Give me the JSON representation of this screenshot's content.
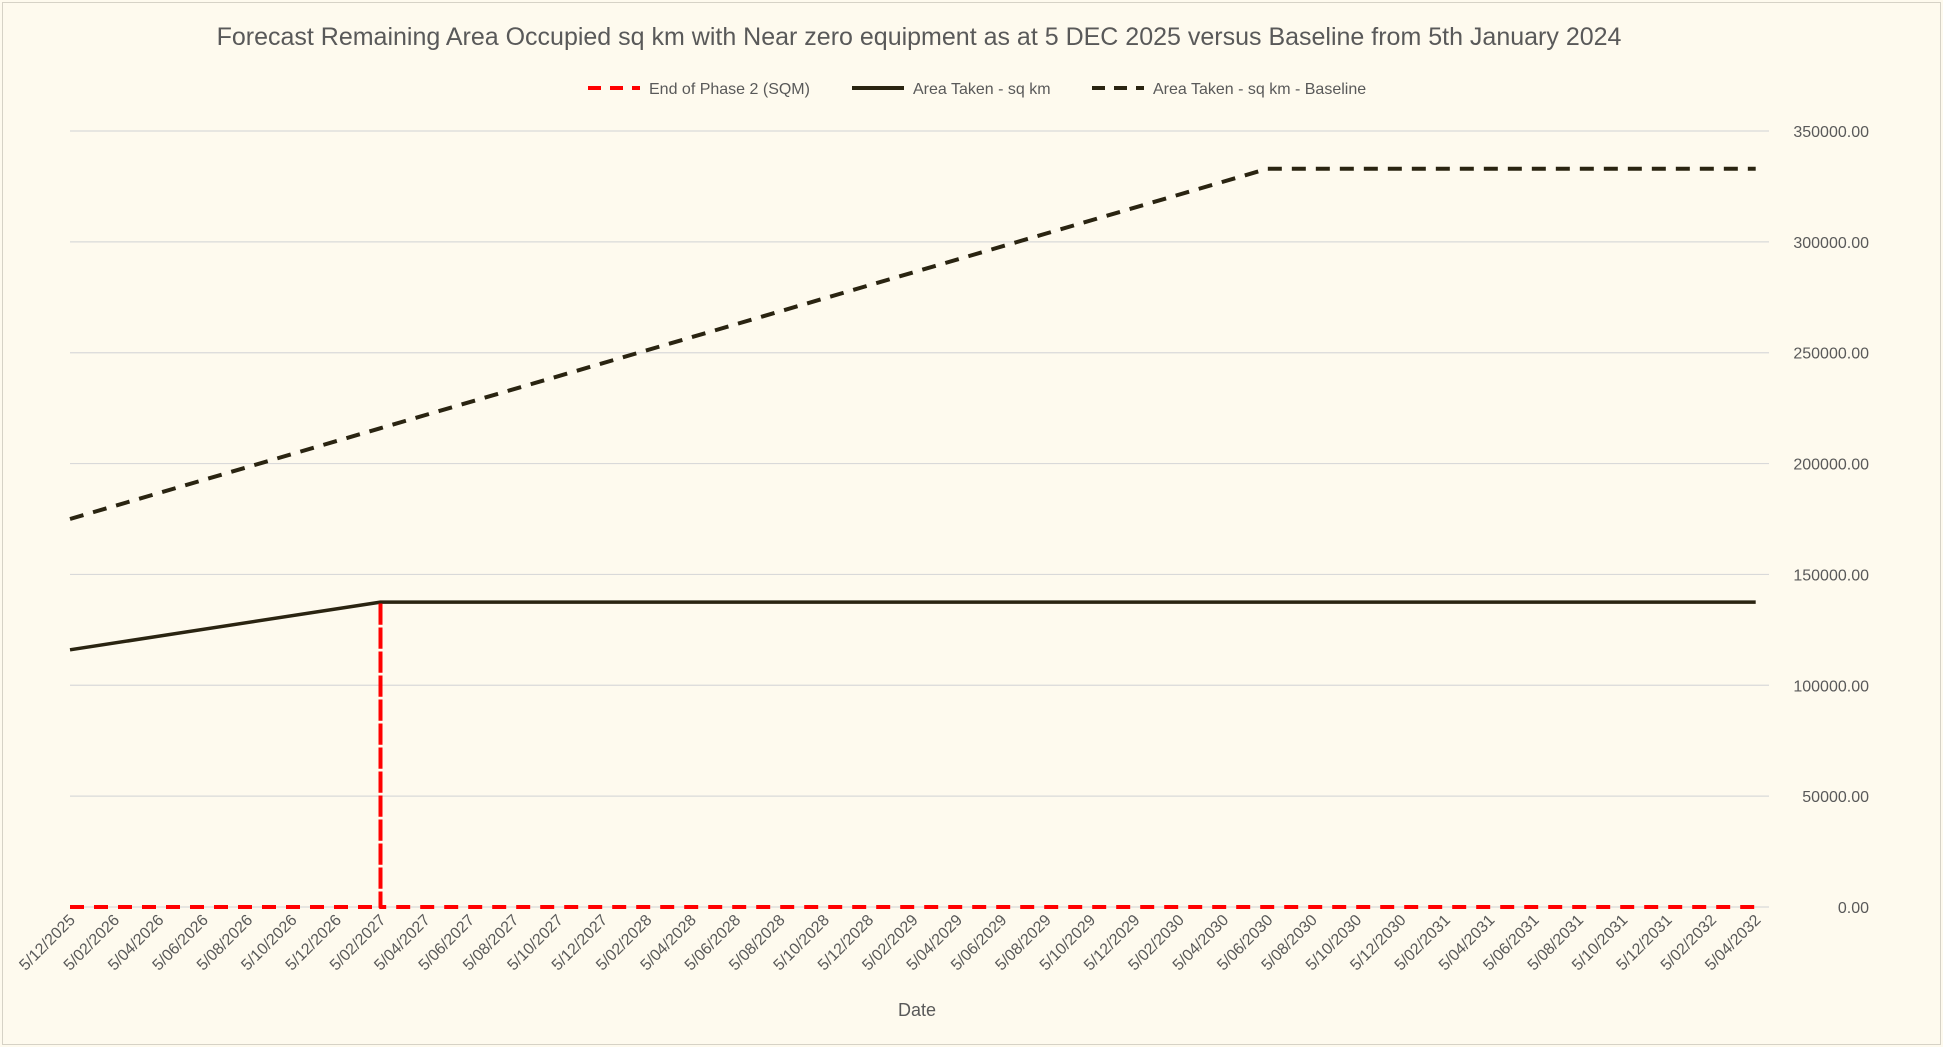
{
  "chart_data": {
    "type": "line",
    "title": "Forecast Remaining Area Occupied sq km with Near zero equipment as at 5 DEC 2025 versus Baseline from 5th January 2024",
    "xlabel": "Date",
    "ylabel": "",
    "x_tick_labels": [
      "5/12/2025",
      "5/02/2026",
      "5/04/2026",
      "5/06/2026",
      "5/08/2026",
      "5/10/2026",
      "5/12/2026",
      "5/02/2027",
      "5/04/2027",
      "5/06/2027",
      "5/08/2027",
      "5/10/2027",
      "5/12/2027",
      "5/02/2028",
      "5/04/2028",
      "5/06/2028",
      "5/08/2028",
      "5/10/2028",
      "5/12/2028",
      "5/02/2029",
      "5/04/2029",
      "5/06/2029",
      "5/08/2029",
      "5/10/2029",
      "5/12/2029",
      "5/02/2030",
      "5/04/2030",
      "5/06/2030",
      "5/08/2030",
      "5/10/2030",
      "5/12/2030",
      "5/02/2031",
      "5/04/2031",
      "5/06/2031",
      "5/08/2031",
      "5/10/2031",
      "5/12/2031",
      "5/02/2032",
      "5/04/2032"
    ],
    "y_tick_labels": [
      "0.00",
      "50000.00",
      "100000.00",
      "150000.00",
      "200000.00",
      "250000.00",
      "300000.00",
      "350000.00"
    ],
    "ylim": [
      0,
      350000
    ],
    "y_axis_position": "right",
    "grid": true,
    "legend_position": "top",
    "series": [
      {
        "name": "End of Phase 2 (SQM)",
        "color": "#FF0000",
        "style": "dashed",
        "points": [
          {
            "x": "5/12/2025",
            "y": 0
          },
          {
            "x": "5/02/2027",
            "y": 0
          },
          {
            "x": "5/02/2027",
            "y": 137500
          },
          {
            "x": "5/02/2027",
            "y": 0
          },
          {
            "x": "5/04/2032",
            "y": 0
          }
        ]
      },
      {
        "name": "Area Taken - sq km",
        "color": "#2A2411",
        "style": "solid",
        "points": [
          {
            "x": "5/12/2025",
            "y": 116000
          },
          {
            "x": "5/02/2027",
            "y": 137500
          },
          {
            "x": "5/04/2032",
            "y": 137500
          }
        ]
      },
      {
        "name": "Area Taken - sq km - Baseline",
        "color": "#2A2411",
        "style": "dashed",
        "points": [
          {
            "x": "5/12/2025",
            "y": 175000
          },
          {
            "x": "5/06/2030",
            "y": 333000
          },
          {
            "x": "5/04/2032",
            "y": 333000
          }
        ]
      }
    ]
  }
}
